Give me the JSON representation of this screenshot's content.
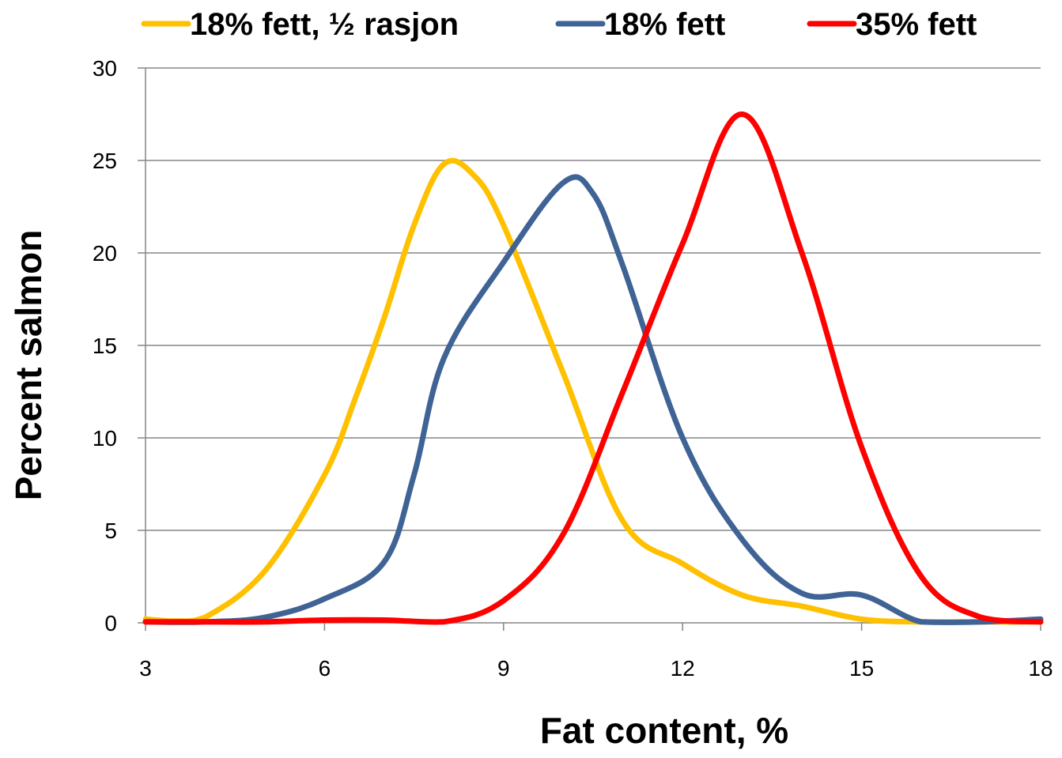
{
  "chart_data": {
    "type": "line",
    "title": "",
    "xlabel": "Fat content, %",
    "ylabel": "Percent salmon",
    "xlim": [
      3,
      18
    ],
    "ylim": [
      0,
      30
    ],
    "x_ticks": [
      3,
      6,
      9,
      12,
      15,
      18
    ],
    "y_ticks": [
      0,
      5,
      10,
      15,
      20,
      25,
      30
    ],
    "grid": "horizontal",
    "legend_position": "top",
    "smooth": true,
    "series": [
      {
        "name": "18% fett, ½ rasjon",
        "color": "#FFC000",
        "points": [
          [
            3,
            0.2
          ],
          [
            3.5,
            0.1
          ],
          [
            4,
            0.3
          ],
          [
            5,
            2.8
          ],
          [
            6,
            8
          ],
          [
            6.5,
            12
          ],
          [
            7,
            16.5
          ],
          [
            7.5,
            21.5
          ],
          [
            8,
            24.8
          ],
          [
            8.5,
            24.2
          ],
          [
            9,
            21.5
          ],
          [
            10,
            13.5
          ],
          [
            11,
            5.5
          ],
          [
            12,
            3.2
          ],
          [
            13,
            1.5
          ],
          [
            14,
            0.9
          ],
          [
            15,
            0.2
          ],
          [
            16,
            0.05
          ],
          [
            17,
            0.05
          ],
          [
            18,
            0.05
          ]
        ]
      },
      {
        "name": "18% fett",
        "color": "#3F6395",
        "points": [
          [
            3,
            0.05
          ],
          [
            4,
            0.05
          ],
          [
            5,
            0.3
          ],
          [
            6,
            1.3
          ],
          [
            7,
            3.3
          ],
          [
            7.5,
            8
          ],
          [
            8,
            14.3
          ],
          [
            9,
            19.5
          ],
          [
            10,
            23.8
          ],
          [
            10.5,
            23.2
          ],
          [
            11,
            19.3
          ],
          [
            12,
            10
          ],
          [
            13,
            4.5
          ],
          [
            14,
            1.6
          ],
          [
            15,
            1.5
          ],
          [
            16,
            0.05
          ],
          [
            17,
            0.05
          ],
          [
            18,
            0.2
          ]
        ]
      },
      {
        "name": "35% fett",
        "color": "#FF0000",
        "points": [
          [
            3,
            0.05
          ],
          [
            4,
            0.05
          ],
          [
            5,
            0.05
          ],
          [
            6,
            0.15
          ],
          [
            7,
            0.15
          ],
          [
            8,
            0.05
          ],
          [
            9,
            1.2
          ],
          [
            10,
            4.8
          ],
          [
            11,
            12.5
          ],
          [
            12,
            20.5
          ],
          [
            13,
            27.5
          ],
          [
            14,
            20
          ],
          [
            15,
            9.5
          ],
          [
            16,
            2.5
          ],
          [
            17,
            0.3
          ],
          [
            18,
            0.05
          ]
        ]
      }
    ]
  }
}
